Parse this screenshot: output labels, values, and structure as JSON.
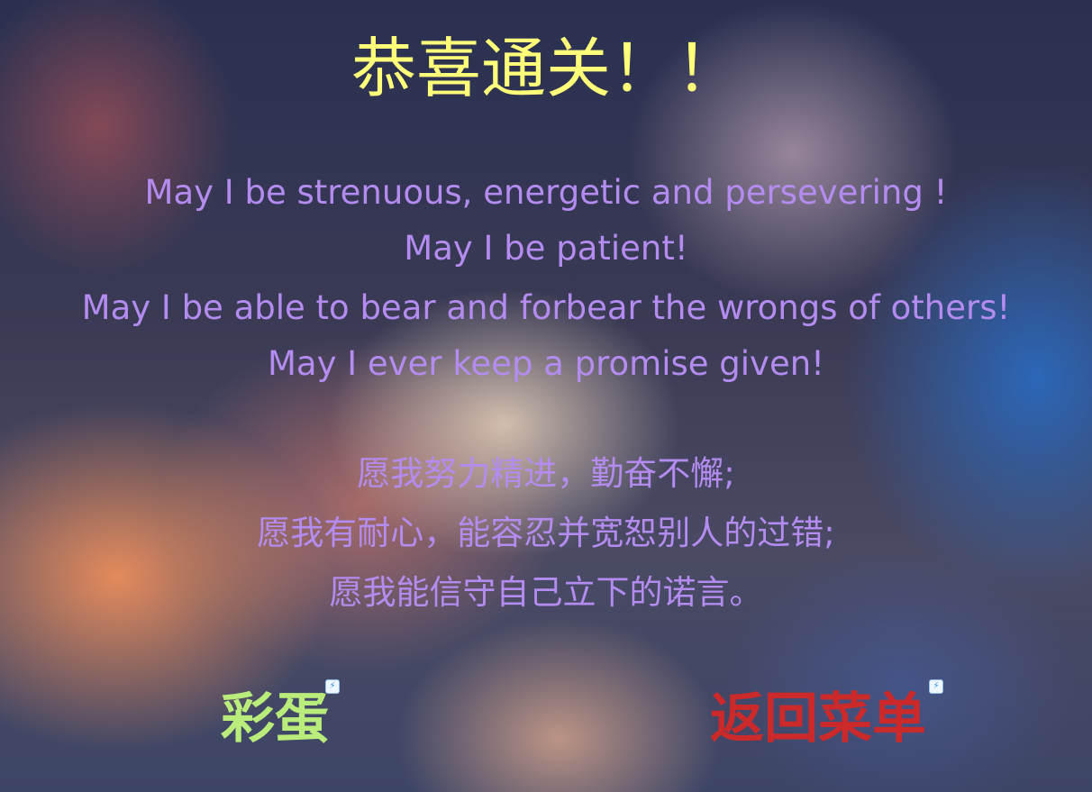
{
  "title": "恭喜通关！！",
  "poem": {
    "english": [
      "May I be strenuous, energetic and persevering !",
      "May I be patient!",
      "May I be able to bear and forbear the wrongs of others!",
      "May I ever keep a promise given!"
    ],
    "chinese": [
      "愿我努力精进，勤奋不懈;",
      "愿我有耐心，能容忍并宽恕别人的过错;",
      "愿我能信守自己立下的诺言。"
    ]
  },
  "buttons": {
    "easter_egg_label": "彩蛋",
    "back_to_menu_label": "返回菜单"
  },
  "badge_icon": "lightning-icon",
  "colors": {
    "title": "#ffff7a",
    "poem": "#b48cf0",
    "easter_egg": "#b9ec7a",
    "back_to_menu": "#cc2a2a"
  }
}
